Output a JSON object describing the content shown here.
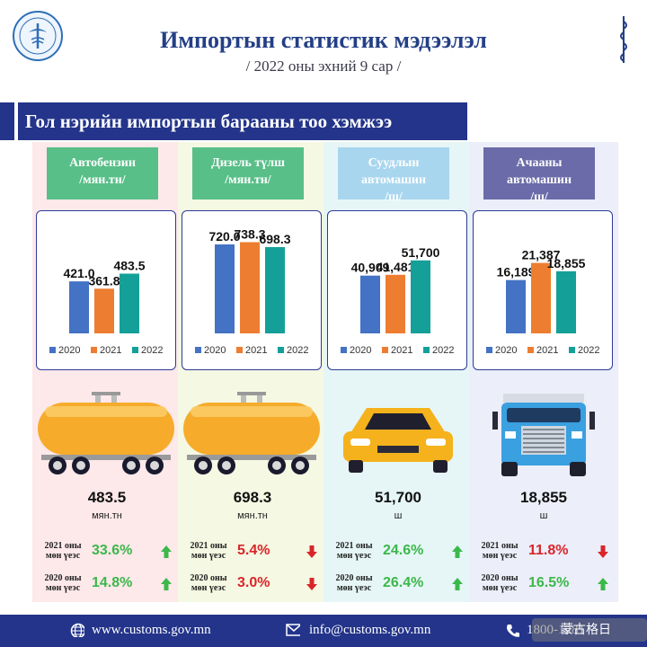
{
  "header": {
    "title": "Импортын статистик мэдээлэл",
    "subtitle": "/ 2022 оны эхний 9 сар /",
    "logo_icon": "customs-emblem-icon",
    "script_icon": "mongolian-script-icon"
  },
  "banner": {
    "text": "Гол нэрийн импортын барааны тоо хэмжээ"
  },
  "legend": [
    "2020",
    "2021",
    "2022"
  ],
  "colors": {
    "s2020": "#4472c4",
    "s2021": "#ed7d31",
    "s2022": "#14a098",
    "up": "#3bb84a",
    "down": "#d9252a",
    "navy": "#23348a"
  },
  "chart_data": [
    {
      "type": "bar",
      "title": "Автобензин /мян.тн/",
      "categories": [
        "2020",
        "2021",
        "2022"
      ],
      "values": [
        421.0,
        361.8,
        483.5
      ],
      "labels": [
        "421.0",
        "361.8",
        "483.5"
      ],
      "ylim": [
        0,
        800
      ]
    },
    {
      "type": "bar",
      "title": "Дизель түлш /мян.тн/",
      "categories": [
        "2020",
        "2021",
        "2022"
      ],
      "values": [
        720.0,
        738.3,
        698.3
      ],
      "labels": [
        "720.0",
        "738.3",
        "698.3"
      ],
      "ylim": [
        0,
        800
      ]
    },
    {
      "type": "bar",
      "title": "Суудлын автомашин /ш/",
      "categories": [
        "2020",
        "2021",
        "2022"
      ],
      "values": [
        40909,
        41481,
        51700
      ],
      "labels": [
        "40,909",
        "41,481",
        "51,700"
      ],
      "ylim": [
        0,
        70000
      ]
    },
    {
      "type": "bar",
      "title": "Ачааны автомашин /ш/",
      "categories": [
        "2020",
        "2021",
        "2022"
      ],
      "values": [
        16189,
        21387,
        18855
      ],
      "labels": [
        "16,189",
        "21,387",
        "18,855"
      ],
      "ylim": [
        0,
        30000
      ]
    }
  ],
  "columns": [
    {
      "name_line1": "Автобензин",
      "name_line2": "/мян.тн/",
      "total": "483.5",
      "unit": "мян.тн",
      "cmp_label": "2021 оны мөн үеэс",
      "cmp2_label": "2020 оны мөн үеэс",
      "cmp1": "33.6%",
      "cmp1_dir": "up",
      "cmp2": "14.8%",
      "cmp2_dir": "up",
      "bg": "#fde8ea",
      "cat_bg": "#58bf88",
      "illus": "tank-wagon-icon"
    },
    {
      "name_line1": "Дизель түлш",
      "name_line2": "/мян.тн/",
      "total": "698.3",
      "unit": "мян.тн",
      "cmp_label": "2021 оны мөн үеэс",
      "cmp2_label": "2020 оны мөн үеэс",
      "cmp1": "5.4%",
      "cmp1_dir": "down",
      "cmp2": "3.0%",
      "cmp2_dir": "down",
      "bg": "#f5f8e2",
      "cat_bg": "#58bf88",
      "illus": "tank-wagon-icon"
    },
    {
      "name_line1": "Суудлын",
      "name_line2": "автомашин",
      "name_line3": "/ш/",
      "total": "51,700",
      "unit": "ш",
      "cmp_label": "2021 оны мөн үеэс",
      "cmp2_label": "2020 оны мөн үеэс",
      "cmp1": "24.6%",
      "cmp1_dir": "up",
      "cmp2": "26.4%",
      "cmp2_dir": "up",
      "bg": "#e6f6f6",
      "cat_bg": "#a8d6ee",
      "illus": "car-icon"
    },
    {
      "name_line1": "Ачааны",
      "name_line2": "автомашин",
      "name_line3": "/ш/",
      "total": "18,855",
      "unit": "ш",
      "cmp_label": "2021 оны мөн үеэс",
      "cmp2_label": "2020 оны мөн үеэс",
      "cmp1": "11.8%",
      "cmp1_dir": "down",
      "cmp2": "16.5%",
      "cmp2_dir": "up",
      "bg": "#eceef9",
      "cat_bg": "#6a6ba8",
      "illus": "truck-icon"
    }
  ],
  "footer": {
    "website": "www.customs.gov.mn",
    "email": "info@customs.gov.mn",
    "phone": "1800-1281",
    "watermark": "蒙古格日"
  }
}
